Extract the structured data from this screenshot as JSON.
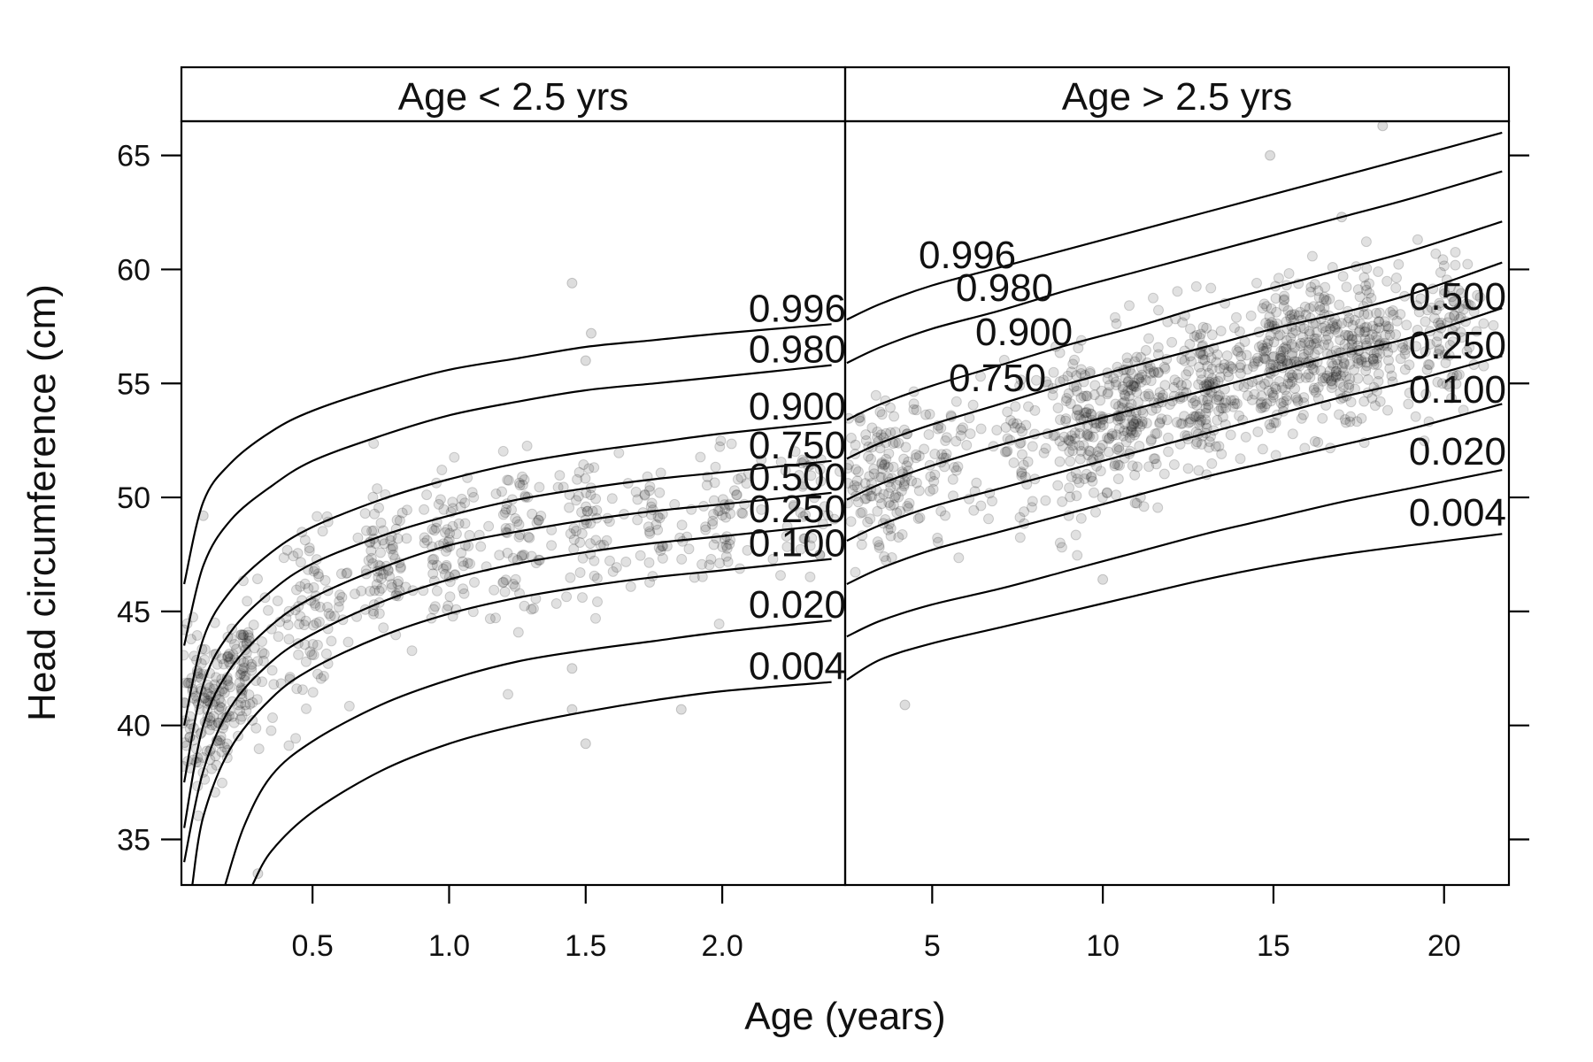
{
  "chart_data": {
    "type": "scatter",
    "xlabel": "Age (years)",
    "ylabel": "Head circumference (cm)",
    "ylim": [
      33,
      66.5
    ],
    "yticks": [
      35,
      40,
      45,
      50,
      55,
      60,
      65
    ],
    "grid": false,
    "colors": {
      "points": "#1a1a1a",
      "curves": "#000000",
      "frame": "#000000"
    },
    "panels": [
      {
        "strip_label": "Age < 2.5 yrs",
        "xlim": [
          0.02,
          2.45
        ],
        "xticks": [
          0.5,
          1.0,
          1.5,
          2.0
        ],
        "xtick_labels": [
          "0.5",
          "1.0",
          "1.5",
          "2.0"
        ],
        "centiles": [
          {
            "label": "0.996",
            "x": [
              0.03,
              0.1,
              0.2,
              0.35,
              0.5,
              0.75,
              1.0,
              1.25,
              1.5,
              1.75,
              2.0,
              2.4
            ],
            "y": [
              46.2,
              49.8,
              51.5,
              52.9,
              53.8,
              54.8,
              55.6,
              56.1,
              56.6,
              56.9,
              57.2,
              57.6
            ]
          },
          {
            "label": "0.980",
            "x": [
              0.03,
              0.1,
              0.2,
              0.35,
              0.5,
              0.75,
              1.0,
              1.25,
              1.5,
              1.75,
              2.0,
              2.4
            ],
            "y": [
              43.5,
              47.0,
              49.0,
              50.5,
              51.6,
              52.7,
              53.6,
              54.2,
              54.7,
              55.0,
              55.3,
              55.8
            ]
          },
          {
            "label": "0.900",
            "x": [
              0.03,
              0.1,
              0.2,
              0.35,
              0.5,
              0.75,
              1.0,
              1.25,
              1.5,
              1.75,
              2.0,
              2.4
            ],
            "y": [
              40.0,
              43.8,
              45.9,
              47.6,
              48.7,
              49.9,
              50.8,
              51.5,
              52.0,
              52.4,
              52.8,
              53.3
            ]
          },
          {
            "label": "0.750",
            "x": [
              0.03,
              0.1,
              0.2,
              0.35,
              0.5,
              0.75,
              1.0,
              1.25,
              1.5,
              1.75,
              2.0,
              2.4
            ],
            "y": [
              37.5,
              41.8,
              44.1,
              45.9,
              47.1,
              48.3,
              49.2,
              49.9,
              50.4,
              50.8,
              51.1,
              51.6
            ]
          },
          {
            "label": "0.500",
            "x": [
              0.03,
              0.1,
              0.2,
              0.35,
              0.5,
              0.75,
              1.0,
              1.25,
              1.5,
              1.75,
              2.0,
              2.4
            ],
            "y": [
              35.5,
              40.0,
              42.5,
              44.4,
              45.6,
              46.9,
              47.9,
              48.5,
              49.0,
              49.4,
              49.7,
              50.2
            ]
          },
          {
            "label": "0.250",
            "x": [
              0.03,
              0.1,
              0.2,
              0.35,
              0.5,
              0.75,
              1.0,
              1.25,
              1.5,
              1.75,
              2.0,
              2.4
            ],
            "y": [
              34.0,
              38.0,
              40.8,
              42.8,
              44.0,
              45.4,
              46.4,
              47.1,
              47.6,
              48.0,
              48.3,
              48.8
            ]
          },
          {
            "label": "0.100",
            "x": [
              0.06,
              0.1,
              0.2,
              0.35,
              0.5,
              0.75,
              1.0,
              1.25,
              1.5,
              1.75,
              2.0,
              2.4
            ],
            "y": [
              33.0,
              36.0,
              39.0,
              41.2,
              42.5,
              43.9,
              44.9,
              45.6,
              46.1,
              46.5,
              46.8,
              47.3
            ]
          },
          {
            "label": "0.020",
            "x": [
              0.18,
              0.25,
              0.35,
              0.5,
              0.75,
              1.0,
              1.25,
              1.5,
              1.75,
              2.0,
              2.4
            ],
            "y": [
              33.0,
              35.6,
              37.8,
              39.3,
              40.9,
              42.0,
              42.8,
              43.3,
              43.7,
              44.1,
              44.6
            ]
          },
          {
            "label": "0.004",
            "x": [
              0.28,
              0.35,
              0.5,
              0.75,
              1.0,
              1.25,
              1.5,
              1.75,
              2.0,
              2.4
            ],
            "y": [
              33.0,
              34.5,
              36.2,
              38.0,
              39.2,
              40.0,
              40.6,
              41.1,
              41.5,
              41.9
            ]
          }
        ],
        "cluster_centers": [
          {
            "x": 0.1,
            "y": 40.5,
            "n": 140
          },
          {
            "x": 0.25,
            "y": 42.5,
            "n": 100
          },
          {
            "x": 0.5,
            "y": 45.2,
            "n": 80
          },
          {
            "x": 0.75,
            "y": 46.8,
            "n": 80
          },
          {
            "x": 1.0,
            "y": 47.6,
            "n": 80
          },
          {
            "x": 1.25,
            "y": 48.2,
            "n": 70
          },
          {
            "x": 1.5,
            "y": 48.5,
            "n": 60
          },
          {
            "x": 1.75,
            "y": 48.8,
            "n": 40
          },
          {
            "x": 2.0,
            "y": 49.3,
            "n": 60
          },
          {
            "x": 2.3,
            "y": 49.8,
            "n": 40
          }
        ],
        "outliers": [
          [
            0.1,
            49.2
          ],
          [
            1.45,
            59.4
          ],
          [
            1.5,
            56.0
          ],
          [
            1.52,
            57.2
          ],
          [
            1.45,
            40.7
          ],
          [
            1.5,
            39.2
          ],
          [
            1.45,
            42.5
          ],
          [
            1.85,
            40.7
          ],
          [
            0.3,
            33.5
          ]
        ]
      },
      {
        "strip_label": "Age > 2.5 yrs",
        "xlim": [
          2.45,
          21.9
        ],
        "xticks": [
          5,
          10,
          15,
          20
        ],
        "xtick_labels": [
          "5",
          "10",
          "15",
          "20"
        ],
        "centiles": [
          {
            "label": "0.996",
            "x": [
              2.5,
              3.5,
              5,
              7,
              9,
              11,
              13,
              15,
              17,
              19,
              21.7
            ],
            "y": [
              57.8,
              58.5,
              59.3,
              60.1,
              60.9,
              61.7,
              62.5,
              63.3,
              64.1,
              64.9,
              66.0
            ]
          },
          {
            "label": "0.980",
            "x": [
              2.5,
              3.5,
              5,
              7,
              9,
              11,
              13,
              15,
              17,
              19,
              21.7
            ],
            "y": [
              55.9,
              56.6,
              57.4,
              58.2,
              59.1,
              59.9,
              60.7,
              61.5,
              62.3,
              63.1,
              64.3
            ]
          },
          {
            "label": "0.900",
            "x": [
              2.5,
              3.5,
              5,
              7,
              9,
              11,
              13,
              15,
              17,
              19,
              21.7
            ],
            "y": [
              53.4,
              54.1,
              54.9,
              55.8,
              56.7,
              57.5,
              58.4,
              59.2,
              60.0,
              60.8,
              62.1
            ]
          },
          {
            "label": "0.750",
            "x": [
              2.5,
              3.5,
              5,
              7,
              9,
              11,
              13,
              15,
              17,
              19,
              21.7
            ],
            "y": [
              51.7,
              52.4,
              53.2,
              54.1,
              55.0,
              55.8,
              56.6,
              57.4,
              58.1,
              58.9,
              60.3
            ]
          },
          {
            "label": "0.500",
            "x": [
              2.5,
              3.5,
              5,
              7,
              9,
              11,
              13,
              15,
              17,
              19,
              21.7
            ],
            "y": [
              49.9,
              50.6,
              51.4,
              52.3,
              53.1,
              53.9,
              54.7,
              55.5,
              56.3,
              57.0,
              58.3
            ]
          },
          {
            "label": "0.250",
            "x": [
              2.5,
              3.5,
              5,
              7,
              9,
              11,
              13,
              15,
              17,
              19,
              21.7
            ],
            "y": [
              48.1,
              48.8,
              49.6,
              50.4,
              51.2,
              52.0,
              52.8,
              53.6,
              54.4,
              55.1,
              56.2
            ]
          },
          {
            "label": "0.100",
            "x": [
              2.5,
              3.5,
              5,
              7,
              9,
              11,
              13,
              15,
              17,
              19,
              21.7
            ],
            "y": [
              46.2,
              46.9,
              47.7,
              48.5,
              49.3,
              50.1,
              50.9,
              51.6,
              52.3,
              53.0,
              54.1
            ]
          },
          {
            "label": "0.020",
            "x": [
              2.5,
              3.5,
              5,
              7,
              9,
              11,
              13,
              15,
              17,
              19,
              21.7
            ],
            "y": [
              43.9,
              44.6,
              45.3,
              46.0,
              46.8,
              47.6,
              48.4,
              49.1,
              49.8,
              50.4,
              51.2
            ]
          },
          {
            "label": "0.004",
            "x": [
              2.5,
              3.5,
              5,
              7,
              9,
              11,
              13,
              15,
              17,
              19,
              21.7
            ],
            "y": [
              42.0,
              42.9,
              43.6,
              44.3,
              45.0,
              45.7,
              46.4,
              47.0,
              47.5,
              47.9,
              48.4
            ]
          }
        ],
        "cluster_centers": [
          {
            "x": 3.0,
            "y": 50.5,
            "n": 90
          },
          {
            "x": 4.0,
            "y": 51.0,
            "n": 60
          },
          {
            "x": 5.5,
            "y": 51.8,
            "n": 50
          },
          {
            "x": 7.5,
            "y": 52.3,
            "n": 50
          },
          {
            "x": 9.5,
            "y": 52.8,
            "n": 140
          },
          {
            "x": 11.0,
            "y": 53.8,
            "n": 160
          },
          {
            "x": 13.0,
            "y": 54.8,
            "n": 160
          },
          {
            "x": 15.0,
            "y": 55.8,
            "n": 160
          },
          {
            "x": 16.5,
            "y": 56.5,
            "n": 150
          },
          {
            "x": 18.0,
            "y": 57.0,
            "n": 130
          },
          {
            "x": 20.0,
            "y": 57.6,
            "n": 90
          }
        ],
        "outliers": [
          [
            14.9,
            65.0
          ],
          [
            18.2,
            66.3
          ],
          [
            4.2,
            40.9
          ],
          [
            10.0,
            46.4
          ],
          [
            17.0,
            62.3
          ]
        ]
      }
    ]
  }
}
